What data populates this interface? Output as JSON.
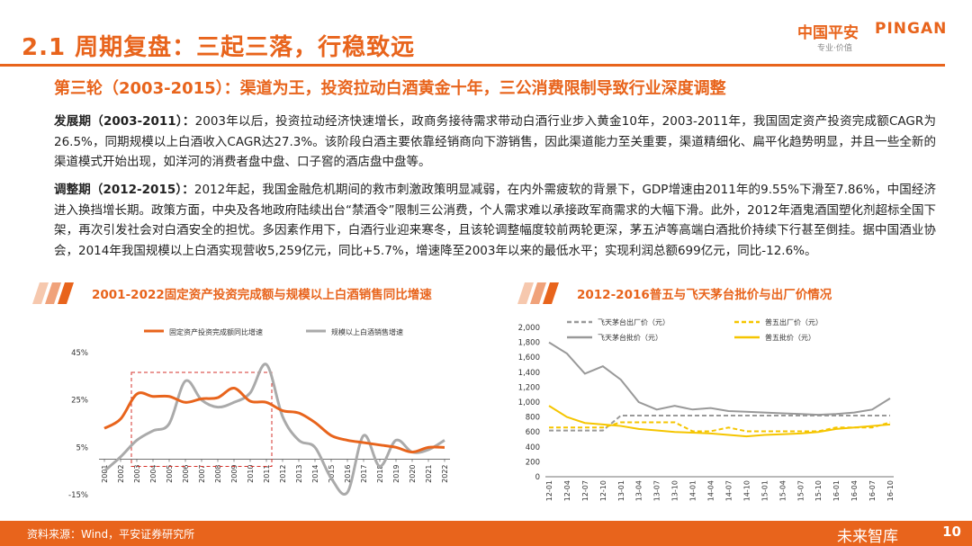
{
  "header": {
    "title": "2.1 周期复盘：三起三落，行稳致远",
    "logo_cn": "中国平安",
    "logo_en": "PINGAN",
    "logo_sub": "专业·价值",
    "accent_color": "#e8641c"
  },
  "subtitle": "第三轮（2003-2015）：渠道为王，投资拉动白酒黄金十年，三公消费限制导致行业深度调整",
  "paragraphs": {
    "p1_lead": "发展期（2003-2011）：",
    "p1_body": "2003年以后，投资拉动经济快速增长，政商务接待需求带动白酒行业步入黄金10年，2003-2011年，我国固定资产投资完成额CAGR为26.5%，同期规模以上白酒收入CAGR达27.3%。该阶段白酒主要依靠经销商向下游销售，因此渠道能力至关重要，渠道精细化、扁平化趋势明显，并且一些全新的渠道模式开始出现，如洋河的消费者盘中盘、口子窖的酒店盘中盘等。",
    "p2_lead": "调整期（2012-2015）：",
    "p2_body": "2012年起，我国金融危机期间的救市刺激政策明显减弱，在内外需疲软的背景下，GDP增速由2011年的9.55%下滑至7.86%，中国经济进入换挡增长期。政策方面，中央及各地政府陆续出台“禁酒令”限制三公消费，个人需求难以承接政军商需求的大幅下滑。此外，2012年酒鬼酒国塑化剂超标全国下架，再次引发社会对白酒安全的担忧。多因素作用下，白酒行业迎来寒冬，且该轮调整幅度较前两轮更深，茅五泸等高端白酒批价持续下行甚至倒挂。据中国酒业协会，2014年我国规模以上白酒实现营收5,259亿元，同比+5.7%，增速降至2003年以来的最低水平；实现利润总额699亿元，同比-12.6%。"
  },
  "chart_data": [
    {
      "type": "line",
      "title": "2001-2022固定资产投资完成额与规模以上白酒销售同比增速",
      "categories": [
        "2001",
        "2002",
        "2003",
        "2004",
        "2005",
        "2006",
        "2007",
        "2008",
        "2009",
        "2010",
        "2011",
        "2012",
        "2013",
        "2014",
        "2015",
        "2016",
        "2017",
        "2018",
        "2019",
        "2020",
        "2021",
        "2022"
      ],
      "series": [
        {
          "name": "固定资产投资完成额同比增速",
          "color": "#e8641c",
          "values": [
            13,
            17,
            27.5,
            26.5,
            26.5,
            24,
            25.5,
            26,
            30,
            24.5,
            24,
            20.5,
            19.5,
            15.5,
            10,
            8,
            7,
            6,
            5,
            3,
            5,
            5
          ]
        },
        {
          "name": "规模以上白酒销售增速",
          "color": "#aaaaaa",
          "values": [
            -5,
            1,
            8,
            12,
            15,
            33,
            25,
            22,
            24,
            28,
            40,
            18,
            8,
            5,
            -8,
            -14,
            10,
            -3,
            8,
            3,
            4,
            8
          ]
        }
      ],
      "yticks": [
        "45%",
        "25%",
        "5%",
        "-15%"
      ],
      "ylim": [
        -15,
        45
      ],
      "highlight": {
        "from": "2003",
        "to": "2011"
      }
    },
    {
      "type": "line",
      "title": "2012-2016普五与飞天茅台批价与出厂价情况",
      "x_labels": [
        "12-01",
        "12-04",
        "12-07",
        "12-10",
        "13-01",
        "13-04",
        "13-07",
        "13-10",
        "14-01",
        "14-04",
        "14-07",
        "14-10",
        "15-01",
        "15-04",
        "15-07",
        "15-10",
        "16-01",
        "16-04",
        "16-07",
        "16-10"
      ],
      "yticks": [
        "2,000",
        "1,800",
        "1,600",
        "1,400",
        "1,200",
        "1,000",
        "800",
        "600",
        "400",
        "200",
        "0"
      ],
      "ylim": [
        0,
        2000
      ],
      "series": [
        {
          "name": "飞天茅台出厂价（元）",
          "color": "#999999",
          "style": "dashed",
          "values": [
            619,
            619,
            619,
            619,
            819,
            819,
            819,
            819,
            819,
            819,
            819,
            819,
            819,
            819,
            819,
            819,
            819,
            819,
            819,
            819
          ]
        },
        {
          "name": "飞天茅台批价（元）",
          "color": "#999999",
          "style": "solid",
          "values": [
            1800,
            1650,
            1380,
            1480,
            1300,
            1000,
            900,
            950,
            900,
            920,
            880,
            870,
            860,
            850,
            840,
            830,
            840,
            860,
            900,
            1050
          ]
        },
        {
          "name": "普五出厂价（元）",
          "color": "#f5c500",
          "style": "dashed",
          "values": [
            659,
            659,
            659,
            659,
            729,
            729,
            729,
            729,
            609,
            609,
            659,
            609,
            609,
            609,
            609,
            609,
            659,
            659,
            659,
            729
          ]
        },
        {
          "name": "普五批价（元）",
          "color": "#f5c500",
          "style": "solid",
          "values": [
            950,
            800,
            720,
            700,
            680,
            640,
            620,
            600,
            590,
            580,
            560,
            540,
            560,
            570,
            580,
            600,
            640,
            660,
            680,
            700
          ]
        }
      ]
    }
  ],
  "footer": {
    "source": "资料来源：Wind，平安证券研究所",
    "watermark": "未来智库",
    "page": "10"
  }
}
